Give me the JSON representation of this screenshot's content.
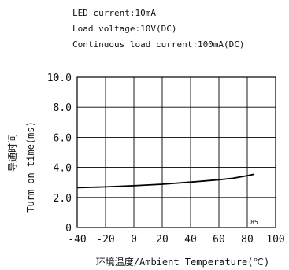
{
  "conditions": [
    "LED current:10mA",
    "Load voltage:10V(DC)",
    "Continuous load current:100mA(DC)"
  ],
  "chart_data": {
    "type": "line",
    "title": "",
    "xlabel": "环境温度/Ambient Temperature(℃)",
    "ylabel_cn": "导通时间",
    "ylabel_en": "Turm on time(ms)",
    "x_ticks": [
      "-40",
      "-20",
      "0",
      "20",
      "40",
      "60",
      "80",
      "100"
    ],
    "y_ticks": [
      "0",
      "2.0",
      "4.0",
      "6.0",
      "8.0",
      "10.0"
    ],
    "xlim": [
      -40,
      100
    ],
    "ylim": [
      0,
      10
    ],
    "grid": true,
    "annotation": "85",
    "series": [
      {
        "x": [
          -40,
          -20,
          0,
          20,
          40,
          60,
          70,
          80,
          85
        ],
        "y": [
          2.65,
          2.7,
          2.78,
          2.88,
          3.02,
          3.18,
          3.28,
          3.45,
          3.55
        ]
      }
    ]
  }
}
